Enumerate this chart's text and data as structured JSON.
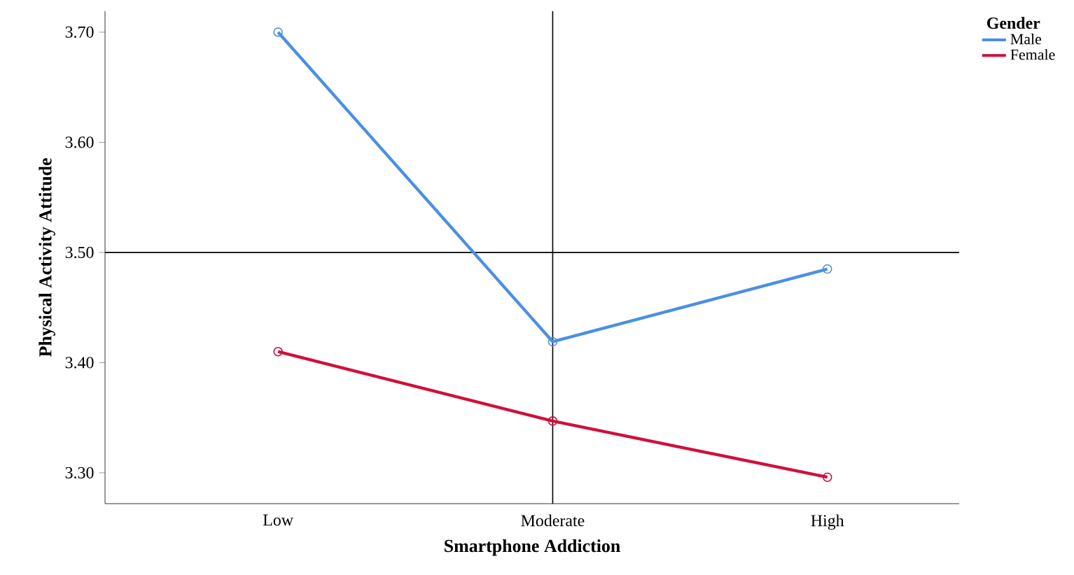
{
  "chart_data": {
    "type": "line",
    "xlabel": "Smartphone Addiction",
    "ylabel": "Physical Activity Attitude",
    "legend_title": "Gender",
    "legend": "top right",
    "marker": "circle",
    "line_style": "solid",
    "categories": [
      "Low",
      "Moderate",
      "High"
    ],
    "series": [
      {
        "name": "Male",
        "color": "#4a90e2",
        "values": [
          3.7,
          3.419,
          3.485
        ]
      },
      {
        "name": "Female",
        "color": "#d0103a",
        "values": [
          3.41,
          3.347,
          3.296
        ]
      }
    ],
    "ylim": [
      3.272,
      3.719
    ],
    "yticks": [
      {
        "value": 3.3,
        "label": "3.30"
      },
      {
        "value": 3.4,
        "label": "3.40"
      },
      {
        "value": 3.5,
        "label": "3.50"
      },
      {
        "value": 3.6,
        "label": "3.60"
      },
      {
        "value": 3.7,
        "label": "3.70"
      }
    ],
    "ref_lines": [
      {
        "axis": "x",
        "value": "Moderate"
      },
      {
        "axis": "y",
        "value": 3.5
      }
    ]
  }
}
